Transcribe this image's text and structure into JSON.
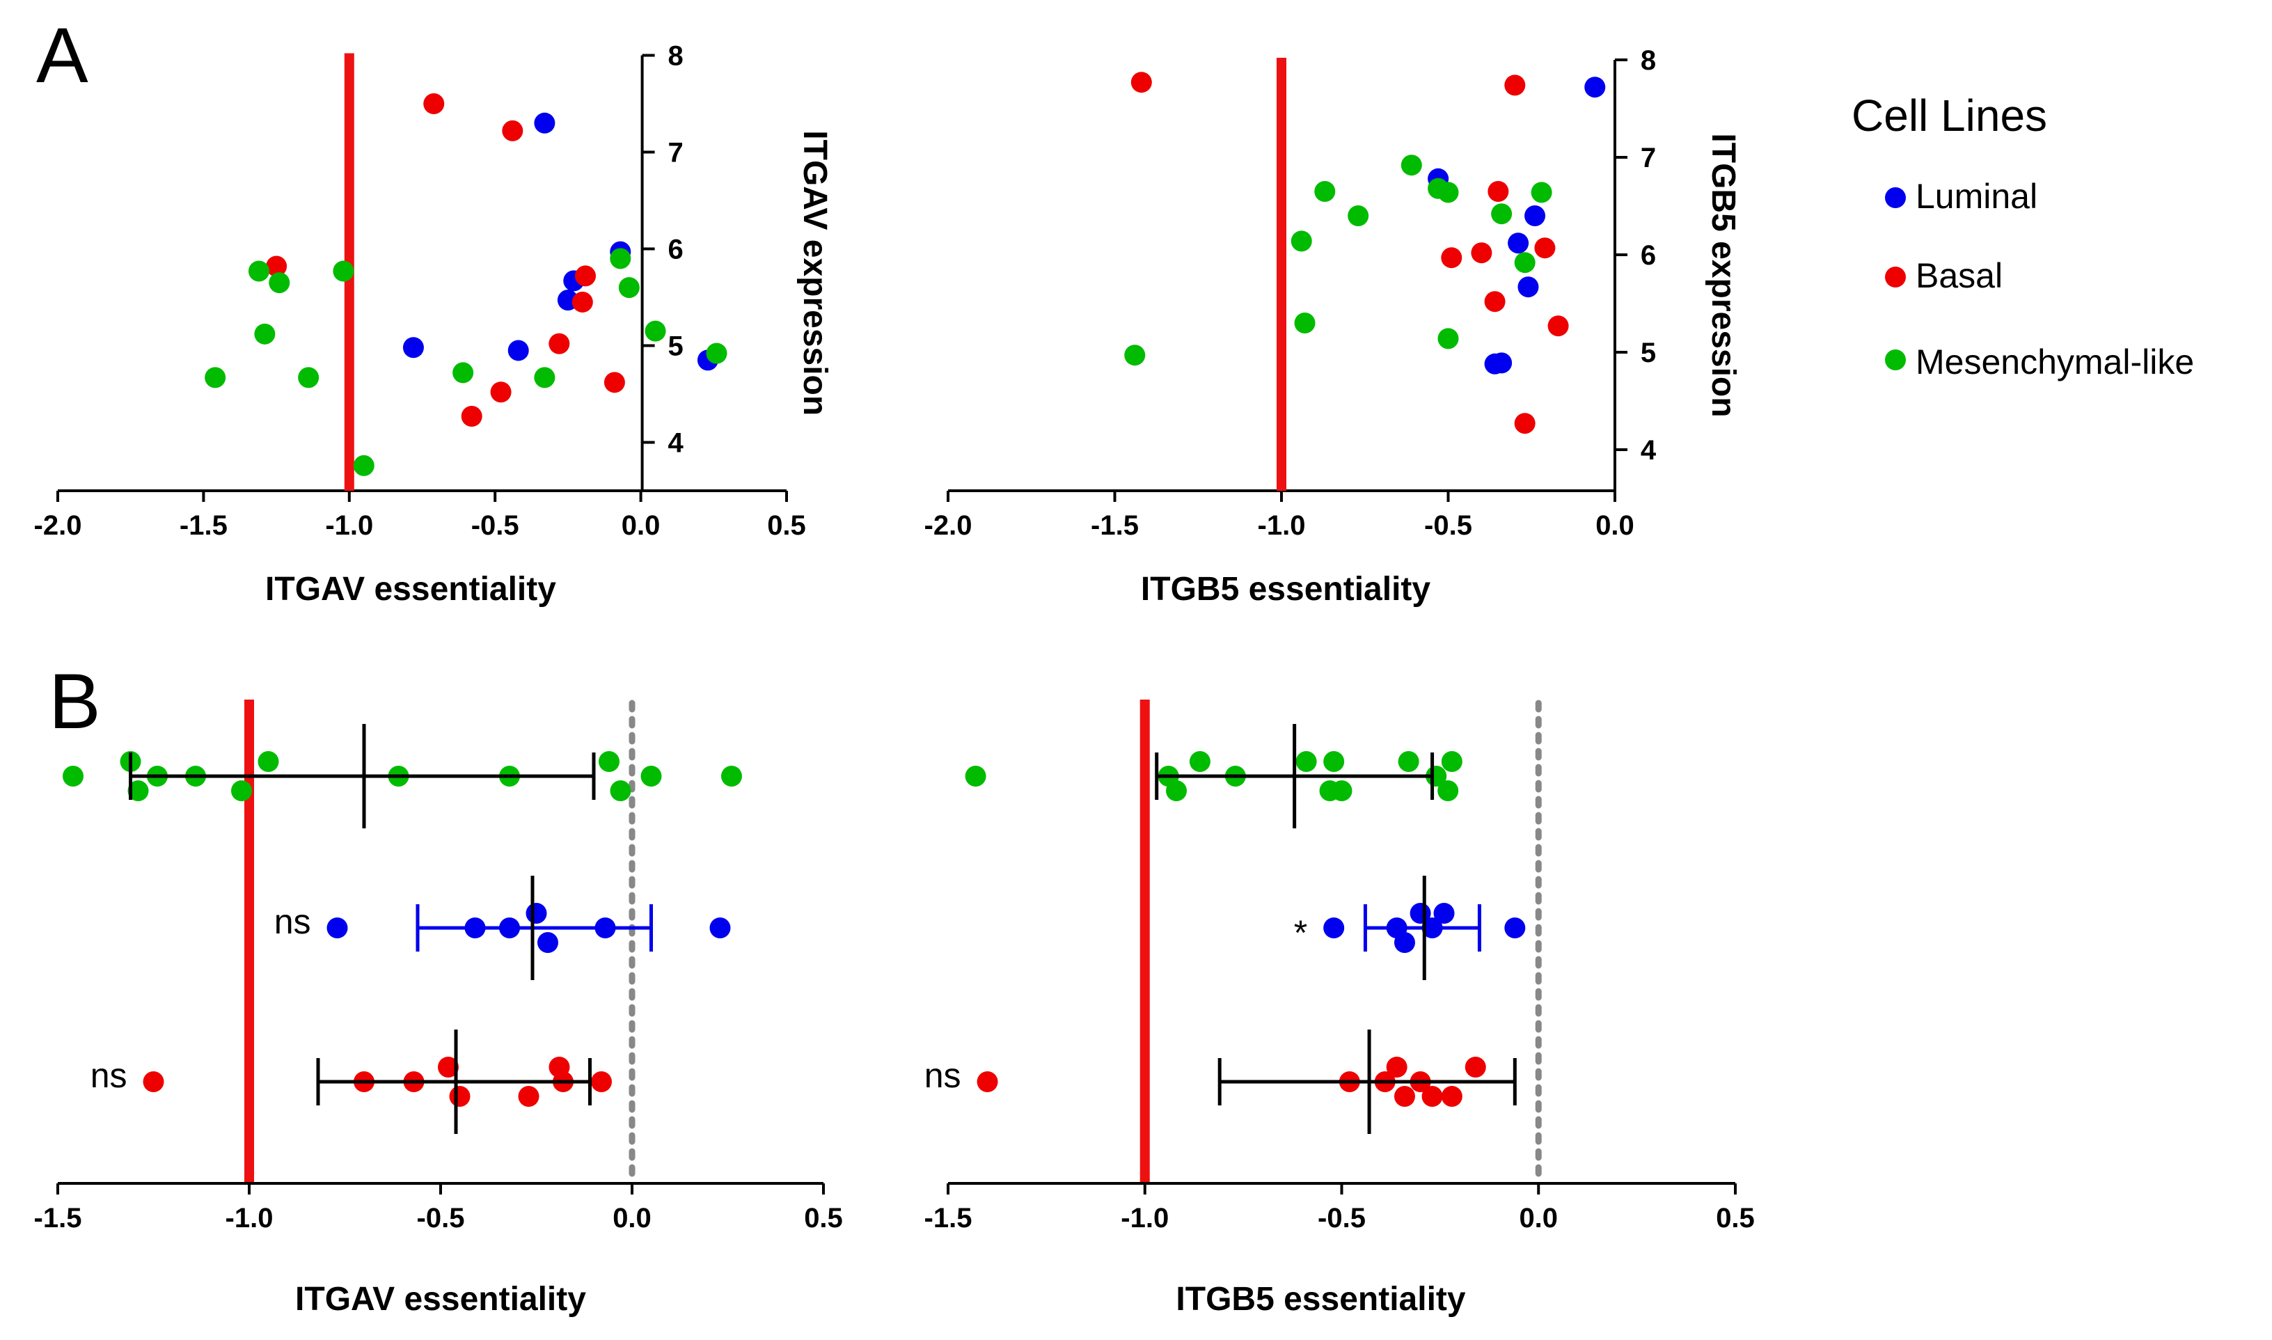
{
  "figure": {
    "panel_a_label": "A",
    "panel_b_label": "B"
  },
  "legend": {
    "title": "Cell Lines",
    "items": [
      {
        "label": "Luminal",
        "color": "#0000ee"
      },
      {
        "label": "Basal",
        "color": "#ee0000"
      },
      {
        "label": "Mesenchymal-like",
        "color": "#00bb00"
      }
    ]
  },
  "colors": {
    "Luminal": "#0000ee",
    "Basal": "#ee0000",
    "Mesenchymal-like": "#00bb00",
    "threshold": "#ee1111",
    "zero_line": "#888888"
  },
  "chart_data": [
    {
      "type": "scatter",
      "id": "A1",
      "xlabel": "ITGAV essentiality",
      "ylabel": "ITGAV expression",
      "xlim": [
        -2.0,
        0.5
      ],
      "ylim": [
        3.5,
        8.0
      ],
      "xticks": [
        -2.0,
        -1.5,
        -1.0,
        -0.5,
        0.0,
        0.5
      ],
      "xtick_labels": [
        "-2.0",
        "-1.5",
        "-1.0",
        "-0.5",
        "0.0",
        "0.5"
      ],
      "yticks": [
        4,
        5,
        6,
        7,
        8
      ],
      "ytick_labels": [
        "4",
        "5",
        "6",
        "7",
        "8"
      ],
      "y_axis_at_x": 0.0,
      "threshold_x": -1.0,
      "series": [
        {
          "name": "Luminal",
          "points": [
            [
              -0.33,
              7.3
            ],
            [
              -0.78,
              4.98
            ],
            [
              -0.42,
              4.95
            ],
            [
              -0.23,
              5.67
            ],
            [
              -0.25,
              5.47
            ],
            [
              -0.07,
              5.97
            ],
            [
              0.23,
              4.85
            ]
          ]
        },
        {
          "name": "Basal",
          "points": [
            [
              -0.71,
              7.5
            ],
            [
              -0.44,
              7.22
            ],
            [
              -1.25,
              5.82
            ],
            [
              -0.19,
              5.72
            ],
            [
              -0.2,
              5.45
            ],
            [
              -0.28,
              5.02
            ],
            [
              -0.09,
              4.62
            ],
            [
              -0.58,
              4.27
            ],
            [
              -0.48,
              4.52
            ]
          ]
        },
        {
          "name": "Mesenchymal-like",
          "points": [
            [
              -1.31,
              5.77
            ],
            [
              -1.24,
              5.65
            ],
            [
              -1.02,
              5.77
            ],
            [
              -0.07,
              5.9
            ],
            [
              -0.04,
              5.6
            ],
            [
              0.05,
              5.15
            ],
            [
              0.26,
              4.92
            ],
            [
              -1.29,
              5.12
            ],
            [
              -0.61,
              4.72
            ],
            [
              -0.33,
              4.67
            ],
            [
              -1.46,
              4.67
            ],
            [
              -1.14,
              4.67
            ],
            [
              -0.95,
              3.76
            ]
          ]
        }
      ]
    },
    {
      "type": "scatter",
      "id": "A2",
      "xlabel": "ITGB5 essentiality",
      "ylabel": "ITGB5 expression",
      "xlim": [
        -2.0,
        0.0
      ],
      "ylim": [
        3.6,
        8.0
      ],
      "xticks": [
        -2.0,
        -1.5,
        -1.0,
        -0.5,
        0.0
      ],
      "xtick_labels": [
        "-2.0",
        "-1.5",
        "-1.0",
        "-0.5",
        "0.0"
      ],
      "yticks": [
        4,
        5,
        6,
        7,
        8
      ],
      "ytick_labels": [
        "4",
        "5",
        "6",
        "7",
        "8"
      ],
      "y_axis_at_x": 0.0,
      "threshold_x": -1.0,
      "series": [
        {
          "name": "Luminal",
          "points": [
            [
              -0.06,
              7.72
            ],
            [
              -0.53,
              6.78
            ],
            [
              -0.24,
              6.4
            ],
            [
              -0.29,
              6.12
            ],
            [
              -0.26,
              5.67
            ],
            [
              -0.36,
              4.88
            ],
            [
              -0.34,
              4.89
            ]
          ]
        },
        {
          "name": "Basal",
          "points": [
            [
              -1.42,
              7.77
            ],
            [
              -0.3,
              7.74
            ],
            [
              -0.35,
              6.65
            ],
            [
              -0.21,
              6.07
            ],
            [
              -0.4,
              6.02
            ],
            [
              -0.49,
              5.97
            ],
            [
              -0.36,
              5.52
            ],
            [
              -0.17,
              5.27
            ],
            [
              -0.27,
              4.27
            ]
          ]
        },
        {
          "name": "Mesenchymal-like",
          "points": [
            [
              -0.61,
              6.92
            ],
            [
              -0.53,
              6.68
            ],
            [
              -0.5,
              6.64
            ],
            [
              -0.87,
              6.65
            ],
            [
              -0.77,
              6.4
            ],
            [
              -0.34,
              6.42
            ],
            [
              -0.22,
              6.64
            ],
            [
              -0.27,
              5.92
            ],
            [
              -0.94,
              6.14
            ],
            [
              -0.93,
              5.3
            ],
            [
              -0.5,
              5.14
            ],
            [
              -1.44,
              4.97
            ]
          ]
        }
      ]
    },
    {
      "type": "dot-plot",
      "id": "B1",
      "xlabel": "ITGAV essentiality",
      "xlim": [
        -1.5,
        0.5
      ],
      "xticks": [
        -1.5,
        -1.0,
        -0.5,
        0.0,
        0.5
      ],
      "xtick_labels": [
        "-1.5",
        "-1.0",
        "-0.5",
        "0.0",
        "0.5"
      ],
      "threshold_x": -1.0,
      "zero_line_x": 0.0,
      "groups": [
        {
          "name": "Mesenchymal-like",
          "mean": -0.7,
          "ci_low": -1.31,
          "ci_high": -0.1,
          "bar_color": "#000000",
          "significance": "",
          "values": [
            -1.46,
            -1.31,
            -1.29,
            -1.24,
            -1.14,
            -1.02,
            -0.95,
            -0.61,
            -0.32,
            -0.06,
            -0.03,
            0.05,
            0.26
          ],
          "jitter": [
            0,
            -1,
            1,
            0,
            0,
            1,
            -1,
            0,
            0,
            -1,
            1,
            0,
            0
          ]
        },
        {
          "name": "Luminal",
          "mean": -0.26,
          "ci_low": -0.56,
          "ci_high": 0.05,
          "bar_color": "#0000ee",
          "significance": "ns",
          "values": [
            -0.77,
            -0.41,
            -0.32,
            -0.25,
            -0.22,
            -0.07,
            0.23
          ],
          "jitter": [
            0,
            0,
            0,
            -1,
            1,
            0,
            0
          ]
        },
        {
          "name": "Basal",
          "mean": -0.46,
          "ci_low": -0.82,
          "ci_high": -0.11,
          "bar_color": "#000000",
          "significance": "ns",
          "values": [
            -1.25,
            -0.7,
            -0.57,
            -0.48,
            -0.45,
            -0.27,
            -0.19,
            -0.18,
            -0.08
          ],
          "jitter": [
            0,
            0,
            0,
            -1,
            1,
            1,
            -1,
            0,
            0
          ]
        }
      ]
    },
    {
      "type": "dot-plot",
      "id": "B2",
      "xlabel": "ITGB5 essentiality",
      "xlim": [
        -1.5,
        0.5
      ],
      "xticks": [
        -1.5,
        -1.0,
        -0.5,
        0.0,
        0.5
      ],
      "xtick_labels": [
        "-1.5",
        "-1.0",
        "-0.5",
        "0.0",
        "0.5"
      ],
      "threshold_x": -1.0,
      "zero_line_x": 0.0,
      "groups": [
        {
          "name": "Mesenchymal-like",
          "mean": -0.62,
          "ci_low": -0.97,
          "ci_high": -0.27,
          "bar_color": "#000000",
          "significance": "",
          "values": [
            -1.43,
            -0.94,
            -0.92,
            -0.86,
            -0.77,
            -0.59,
            -0.53,
            -0.52,
            -0.5,
            -0.33,
            -0.26,
            -0.23,
            -0.22
          ],
          "jitter": [
            0,
            0,
            1,
            -1,
            0,
            -1,
            1,
            -1,
            1,
            -1,
            0,
            1,
            -1
          ]
        },
        {
          "name": "Luminal",
          "mean": -0.29,
          "ci_low": -0.44,
          "ci_high": -0.15,
          "bar_color": "#0000ee",
          "significance": "*",
          "values": [
            -0.52,
            -0.36,
            -0.34,
            -0.3,
            -0.27,
            -0.24,
            -0.06
          ],
          "jitter": [
            0,
            0,
            1,
            -1,
            0,
            -1,
            0
          ]
        },
        {
          "name": "Basal",
          "mean": -0.43,
          "ci_low": -0.81,
          "ci_high": -0.06,
          "bar_color": "#000000",
          "significance": "ns",
          "values": [
            -1.4,
            -0.48,
            -0.39,
            -0.36,
            -0.34,
            -0.3,
            -0.27,
            -0.22,
            -0.16
          ],
          "jitter": [
            0,
            0,
            0,
            -1,
            1,
            0,
            1,
            1,
            -1
          ]
        }
      ]
    }
  ]
}
